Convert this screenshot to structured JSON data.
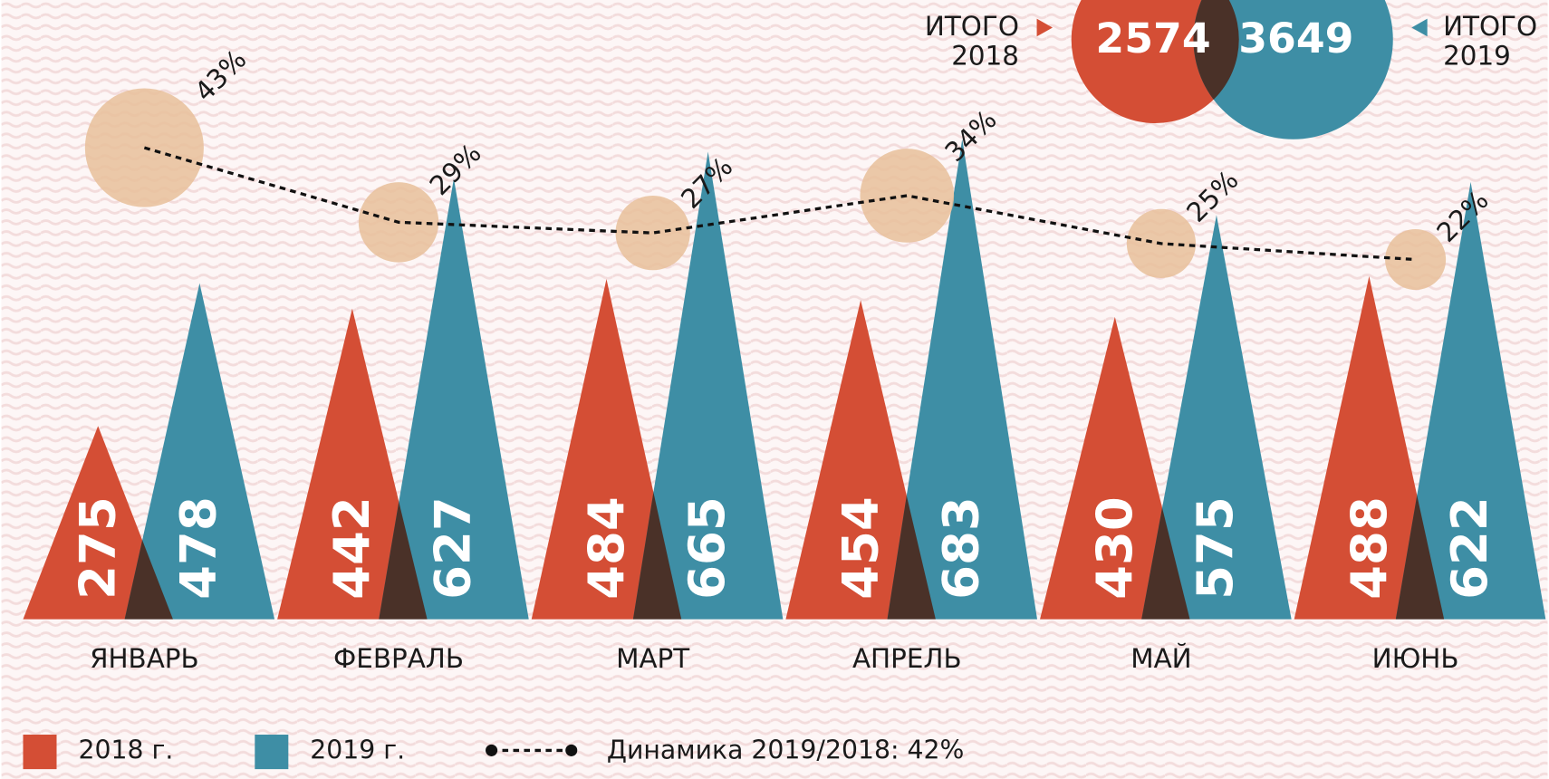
{
  "chart_data": {
    "type": "triangle",
    "categories": [
      "ЯНВАРЬ",
      "ФЕВРАЛЬ",
      "МАРТ",
      "АПРЕЛЬ",
      "МАЙ",
      "ИЮНЬ"
    ],
    "series": [
      {
        "name": "2018 г.",
        "color": "#d44e35",
        "values": [
          275,
          442,
          484,
          454,
          430,
          488
        ]
      },
      {
        "name": "2019 г.",
        "color": "#3e8ea5",
        "values": [
          478,
          627,
          665,
          683,
          575,
          622
        ]
      }
    ],
    "overlap_color": "#4a3128",
    "growth": {
      "name": "Динамика 2019/2018: 42%",
      "color": "#e8c09a",
      "values": [
        43,
        29,
        27,
        34,
        25,
        22
      ],
      "value_labels": [
        "43%",
        "29%",
        "27%",
        "34%",
        "25%",
        "22%"
      ]
    },
    "totals": [
      {
        "label": [
          "ИТОГО",
          "2018"
        ],
        "value": 2574,
        "color": "#d44e35"
      },
      {
        "label": [
          "ИТОГО",
          "2019"
        ],
        "value": 3649,
        "color": "#3e8ea5"
      }
    ]
  }
}
